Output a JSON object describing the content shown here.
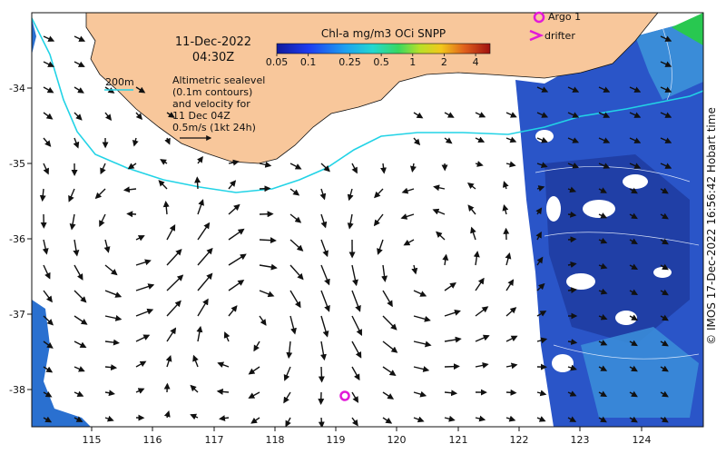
{
  "map": {
    "date": "11-Dec-2022",
    "time": "04:30Z",
    "depth_contour_label": "200m",
    "altimetry_lines": [
      "Altimetric sealevel",
      "(0.1m contours)",
      "and velocity for",
      "11 Dec 04Z",
      "0.5m/s (1kt 24h)"
    ],
    "colorbar": {
      "title": "Chl-a mg/m3 OCi SNPP",
      "ticks": [
        "0.05",
        "0.1",
        "0.25",
        "0.5",
        "1",
        "2",
        "4"
      ]
    },
    "legend": {
      "argo": "Argo 1",
      "drifter": "drifter"
    },
    "credit": "© IMOS 17-Dec-2022 16:56:42 Hobart time",
    "lon_ticks": [
      "115",
      "116",
      "117",
      "118",
      "119",
      "120",
      "121",
      "122",
      "123",
      "124"
    ],
    "lat_ticks": [
      "-34",
      "-35",
      "-36",
      "-37",
      "-38"
    ],
    "colors": {
      "land": "#f8c79b",
      "shelf_contour": "#22d3e6",
      "argo_marker": "#e21ad8",
      "chl_low": "#1e3ca0",
      "chl_mid": "#3a8cd8"
    }
  }
}
